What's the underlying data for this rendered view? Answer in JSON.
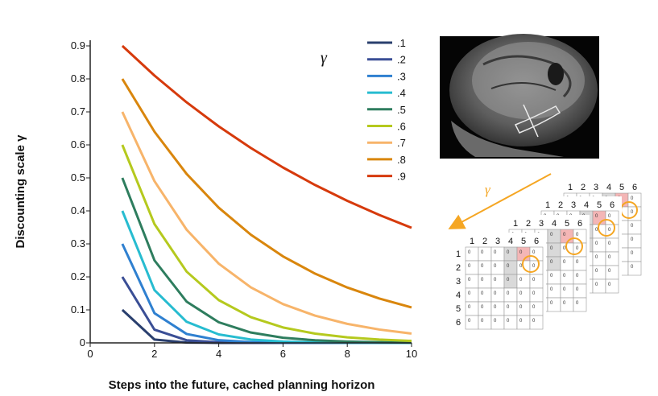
{
  "chart_data": {
    "type": "line",
    "xlabel": "Steps into the future, cached planning horizon",
    "ylabel": "Discounting scale γ",
    "legend_title": "γ",
    "xlim": [
      0,
      10
    ],
    "ylim": [
      0,
      0.9
    ],
    "xticks": [
      "0",
      "2",
      "4",
      "6",
      "8",
      "10"
    ],
    "yticks": [
      "0",
      "0.1",
      "0.2",
      "0.3",
      "0.4",
      "0.5",
      "0.6",
      "0.7",
      "0.8",
      "0.9"
    ],
    "legend_position": "top-right",
    "grid": false,
    "x": [
      1,
      2,
      3,
      4,
      5,
      6,
      7,
      8,
      9,
      10
    ],
    "series": [
      {
        "name": ".1",
        "color": "#2a3f6e",
        "values": [
          0.1,
          0.01,
          0.001,
          0.0001,
          0.0,
          0.0,
          0.0,
          0.0,
          0.0,
          0.0
        ]
      },
      {
        "name": ".2",
        "color": "#3a4e95",
        "values": [
          0.2,
          0.04,
          0.008,
          0.0016,
          0.0003,
          0.0001,
          0.0,
          0.0,
          0.0,
          0.0
        ]
      },
      {
        "name": ".3",
        "color": "#2f80d0",
        "values": [
          0.3,
          0.09,
          0.027,
          0.0081,
          0.0024,
          0.0007,
          0.0002,
          0.0001,
          0.0,
          0.0
        ]
      },
      {
        "name": ".4",
        "color": "#27bcd0",
        "values": [
          0.4,
          0.16,
          0.064,
          0.0256,
          0.0102,
          0.0041,
          0.0016,
          0.0007,
          0.0003,
          0.0001
        ]
      },
      {
        "name": ".5",
        "color": "#2e7d5e",
        "values": [
          0.5,
          0.25,
          0.125,
          0.0625,
          0.0313,
          0.0156,
          0.0078,
          0.0039,
          0.002,
          0.001
        ]
      },
      {
        "name": ".6",
        "color": "#b5c91e",
        "values": [
          0.6,
          0.36,
          0.216,
          0.1296,
          0.0778,
          0.0467,
          0.028,
          0.0168,
          0.0101,
          0.006
        ]
      },
      {
        "name": ".7",
        "color": "#f7b46a",
        "values": [
          0.7,
          0.49,
          0.343,
          0.2401,
          0.1681,
          0.1176,
          0.0824,
          0.0576,
          0.0404,
          0.0282
        ]
      },
      {
        "name": ".8",
        "color": "#d9860d",
        "values": [
          0.8,
          0.64,
          0.512,
          0.4096,
          0.3277,
          0.2621,
          0.2097,
          0.1678,
          0.1342,
          0.1074
        ]
      },
      {
        "name": ".9",
        "color": "#d63a0c",
        "values": [
          0.9,
          0.81,
          0.729,
          0.6561,
          0.5905,
          0.5314,
          0.4783,
          0.4305,
          0.3874,
          0.3487
        ]
      }
    ]
  },
  "side_panel": {
    "gamma_arrow_label": "γ",
    "arrow_color": "#f5a623",
    "mri_image_name": "brain-mri-scan",
    "grid_stack": {
      "column_headers": [
        "1",
        "2",
        "3",
        "4",
        "5",
        "6"
      ],
      "row_headers": [
        "1",
        "2",
        "3",
        "4",
        "5",
        "6"
      ],
      "cell_value": "0",
      "highlight_color": "#f5a623",
      "reward_cell_color": "#f4b6b6"
    }
  }
}
